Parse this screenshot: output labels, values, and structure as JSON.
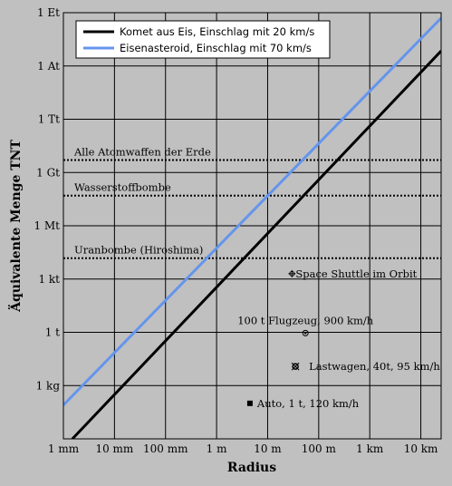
{
  "chart_data": {
    "type": "line",
    "x_scale": "log",
    "y_scale": "log",
    "xlabel": "Radius",
    "ylabel": "Äquivalente Menge TNT",
    "x_ticks": [
      {
        "label": "1 mm",
        "value": 0.001
      },
      {
        "label": "10 mm",
        "value": 0.01
      },
      {
        "label": "100 mm",
        "value": 0.1
      },
      {
        "label": "1 m",
        "value": 1
      },
      {
        "label": "10 m",
        "value": 10
      },
      {
        "label": "100 m",
        "value": 100
      },
      {
        "label": "1 km",
        "value": 1000
      },
      {
        "label": "10 km",
        "value": 10000
      }
    ],
    "y_ticks": [
      {
        "label": "1 kg",
        "value": 0.001
      },
      {
        "label": "1 t",
        "value": 1
      },
      {
        "label": "1 kt",
        "value": 1000
      },
      {
        "label": "1 Mt",
        "value": 1000000
      },
      {
        "label": "1 Gt",
        "value": 1000000000
      },
      {
        "label": "1 Tt",
        "value": 1000000000000
      },
      {
        "label": "1 At",
        "value": 1000000000000000
      },
      {
        "label": "1 Et",
        "value": 1000000000000000000
      }
    ],
    "xlim": [
      0.001,
      25000
    ],
    "ylim": [
      1e-06,
      1000000000000000000
    ],
    "grid": true,
    "legend_position": "top-left",
    "series": [
      {
        "name": "Komet aus Eis, Einschlag mit 20 km/s",
        "color": "#000000",
        "x": [
          0.0015,
          25000
        ],
        "y": [
          1e-06,
          7000000000000000
        ]
      },
      {
        "name": "Eisenasteroid, Einschlag mit 70 km/s",
        "color": "#6495ed",
        "x": [
          0.001,
          25000
        ],
        "y": [
          8e-05,
          500000000000000000
        ]
      }
    ],
    "reference_lines": [
      {
        "label": "Alle Atomwaffen der Erde",
        "y": 5000000000
      },
      {
        "label": "Wasserstoffbombe",
        "y": 50000000
      },
      {
        "label": "Uranbombe (Hiroshima)",
        "y": 15000
      }
    ],
    "points": [
      {
        "label": "Space Shuttle im Orbit",
        "x": 30,
        "y": 2000,
        "marker": "cross-circle"
      },
      {
        "label": "100 t Flugzeug, 900 km/h",
        "x": 55,
        "y": 0.9,
        "marker": "circle-dot"
      },
      {
        "label": "Lastwagen, 40t, 95 km/h",
        "x": 35,
        "y": 0.012,
        "marker": "ring"
      },
      {
        "label": "Auto, 1 t, 120 km/h",
        "x": 4.5,
        "y": 0.0001,
        "marker": "square"
      }
    ]
  }
}
